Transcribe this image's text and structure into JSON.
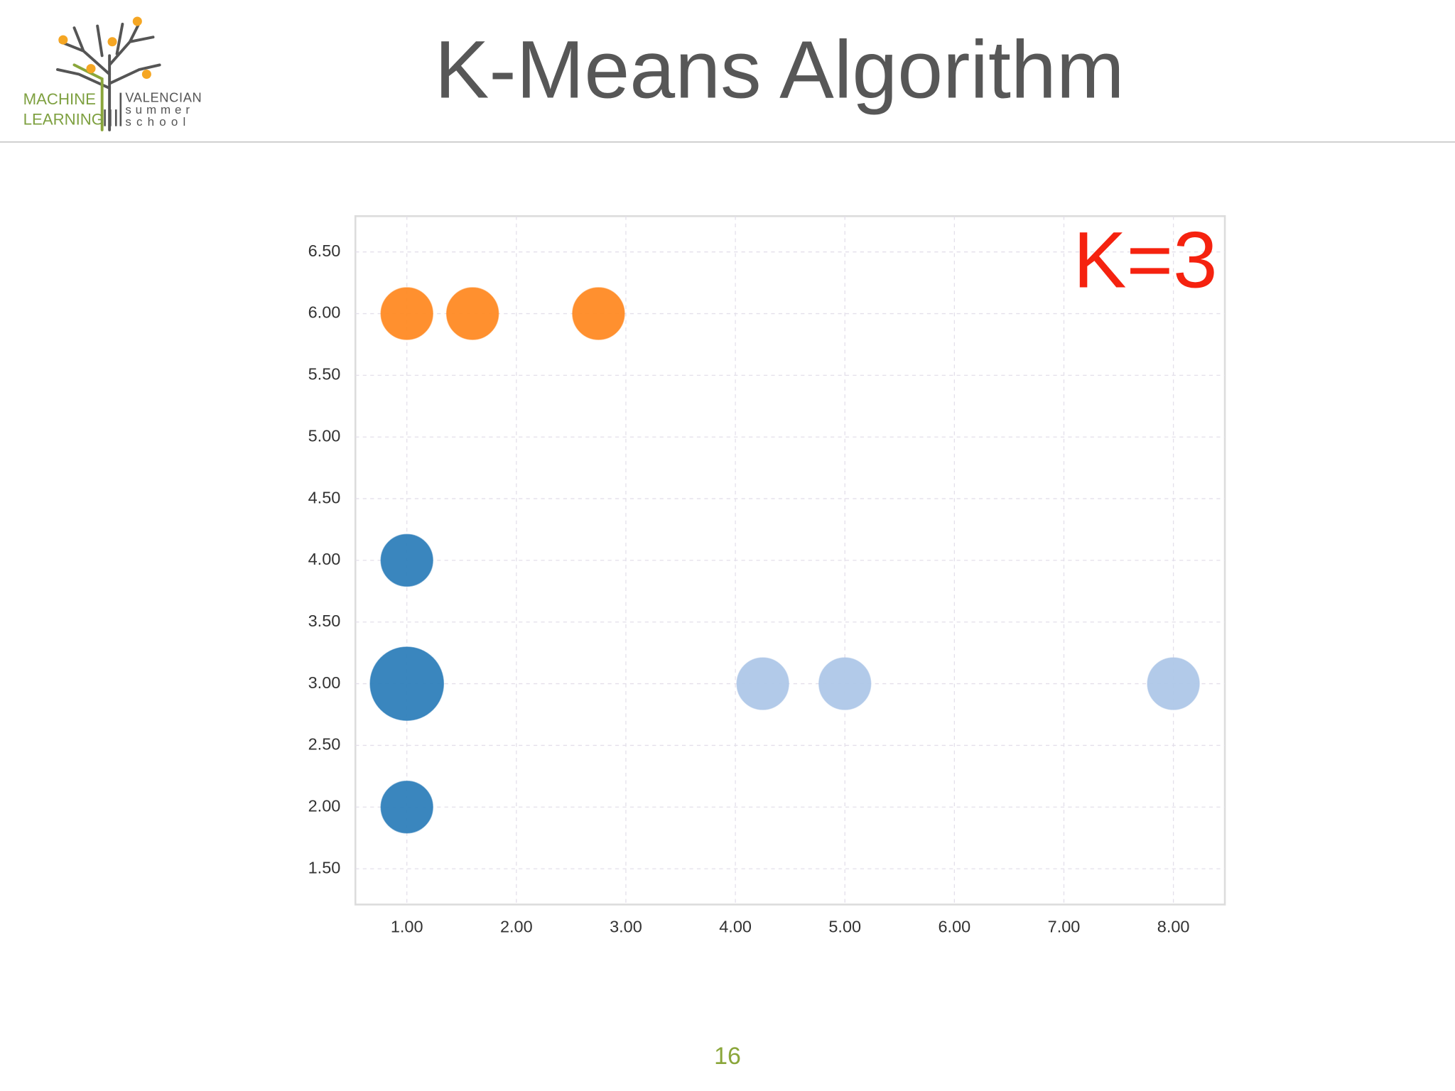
{
  "logo": {
    "left": [
      "MACHINE",
      "LEARNING"
    ],
    "right": [
      "VALENCIAN",
      "summer",
      "school"
    ]
  },
  "title": "K-Means Algorithm",
  "page_number": 16,
  "chart_data": {
    "type": "scatter",
    "annotation": "K=3",
    "grid": true,
    "xlim": [
      0.53,
      8.47
    ],
    "ylim": [
      1.21,
      6.79
    ],
    "xticks": [
      {
        "value": 1,
        "label": "1.00"
      },
      {
        "value": 2,
        "label": "2.00"
      },
      {
        "value": 3,
        "label": "3.00"
      },
      {
        "value": 4,
        "label": "4.00"
      },
      {
        "value": 5,
        "label": "5.00"
      },
      {
        "value": 6,
        "label": "6.00"
      },
      {
        "value": 7,
        "label": "7.00"
      },
      {
        "value": 8,
        "label": "8.00"
      }
    ],
    "yticks": [
      {
        "value": 1.5,
        "label": "1.50"
      },
      {
        "value": 2,
        "label": "2.00"
      },
      {
        "value": 2.5,
        "label": "2.50"
      },
      {
        "value": 3,
        "label": "3.00"
      },
      {
        "value": 3.5,
        "label": "3.50"
      },
      {
        "value": 4,
        "label": "4.00"
      },
      {
        "value": 4.5,
        "label": "4.50"
      },
      {
        "value": 5,
        "label": "5.00"
      },
      {
        "value": 5.5,
        "label": "5.50"
      },
      {
        "value": 6,
        "label": "6.00"
      },
      {
        "value": 6.5,
        "label": "6.50"
      }
    ],
    "series": [
      {
        "color": "#ff8a24",
        "x": [
          1,
          1.6,
          2.75
        ],
        "values": [
          6,
          6,
          6
        ],
        "sizes": [
          1,
          1,
          1
        ]
      },
      {
        "color": "#2f7fba",
        "x": [
          1,
          1,
          1
        ],
        "values": [
          4,
          3,
          2
        ],
        "sizes": [
          1,
          2,
          1
        ]
      },
      {
        "color": "#aec7e8",
        "x": [
          4.25,
          5,
          8
        ],
        "values": [
          3,
          3,
          3
        ],
        "sizes": [
          1,
          1,
          1
        ]
      }
    ]
  }
}
